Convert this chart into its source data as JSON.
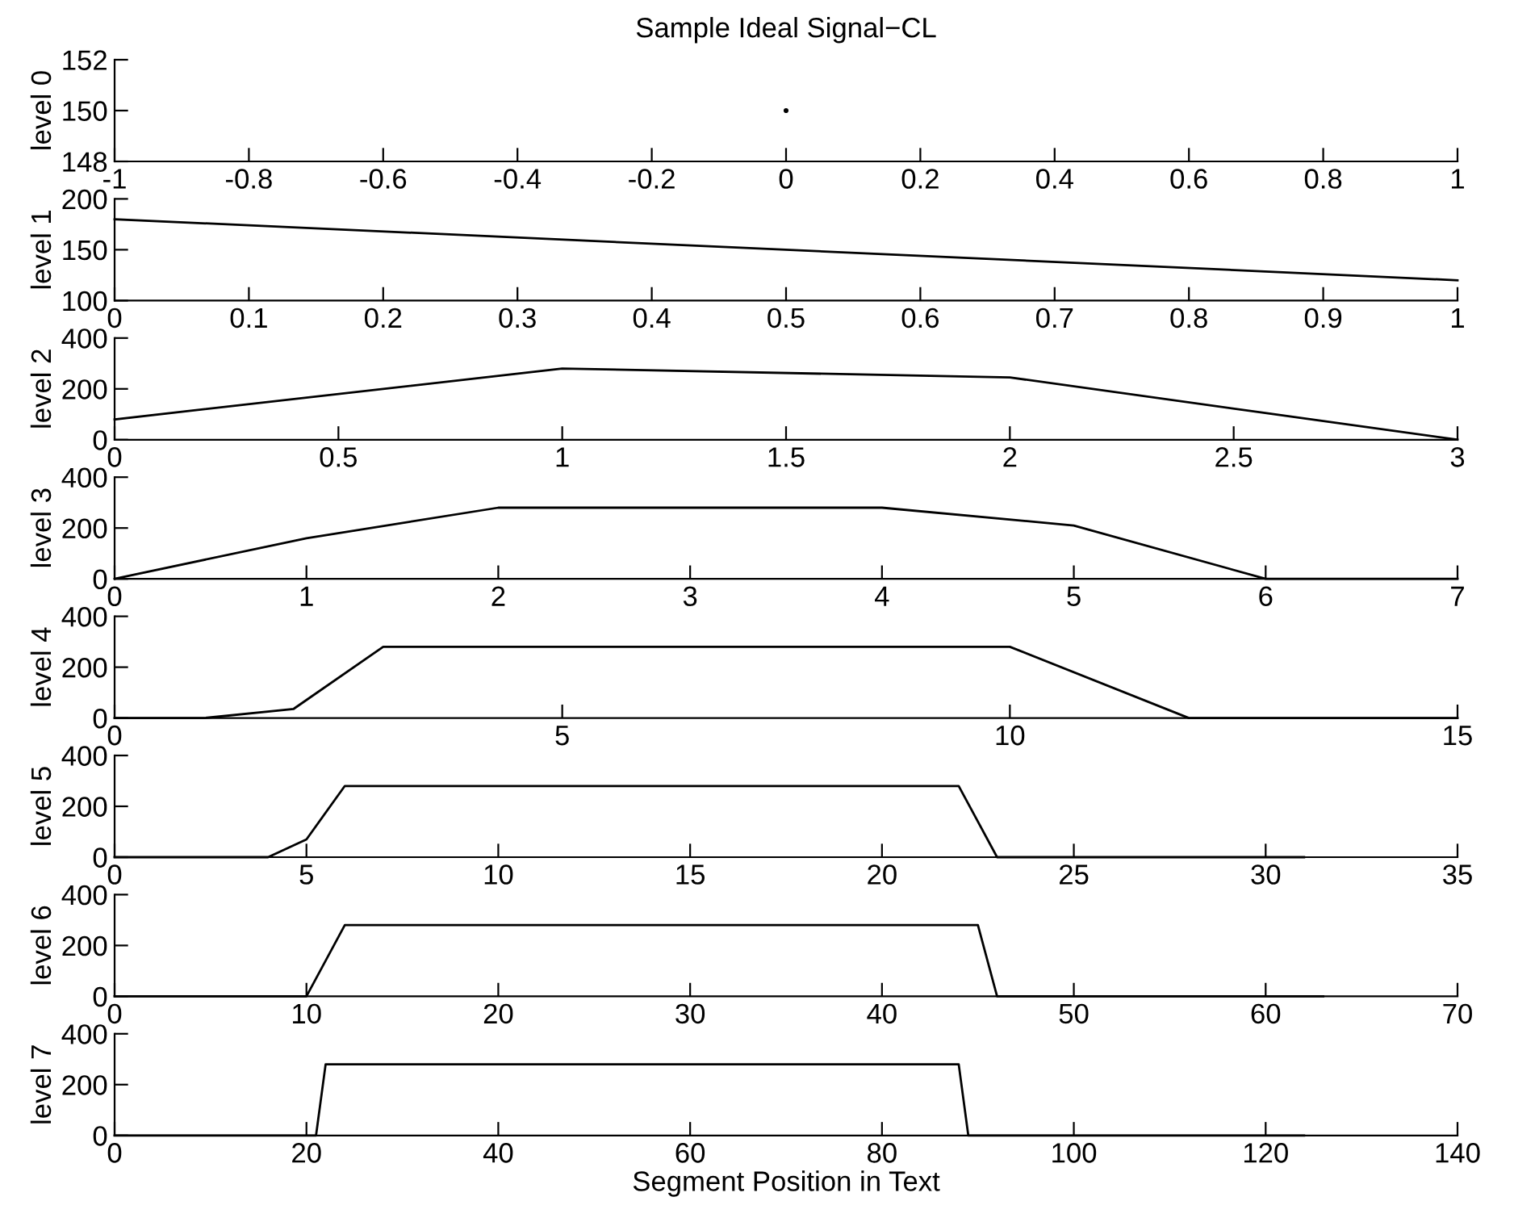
{
  "chart_data": [
    {
      "type": "line",
      "title": "Sample Ideal Signal−CL",
      "ylabel": "level 0",
      "marker": "circle",
      "x": [
        0
      ],
      "values": [
        150
      ],
      "color": "#000000",
      "xlim": [
        -1,
        1
      ],
      "xticks": [
        -1,
        -0.8,
        -0.6,
        -0.4,
        -0.2,
        0,
        0.2,
        0.4,
        0.6,
        0.8,
        1
      ],
      "ylim": [
        148,
        152
      ],
      "yticks": [
        148,
        150,
        152
      ]
    },
    {
      "type": "line",
      "ylabel": "level 1",
      "x": [
        0,
        1
      ],
      "values": [
        180,
        120
      ],
      "color": "#000000",
      "xlim": [
        0,
        1
      ],
      "xticks": [
        0,
        0.1,
        0.2,
        0.3,
        0.4,
        0.5,
        0.6,
        0.7,
        0.8,
        0.9,
        1
      ],
      "ylim": [
        100,
        200
      ],
      "yticks": [
        100,
        150,
        200
      ]
    },
    {
      "type": "line",
      "ylabel": "level 2",
      "x": [
        0,
        1,
        2,
        3
      ],
      "values": [
        80,
        280,
        245,
        0
      ],
      "color": "#000000",
      "xlim": [
        0,
        3
      ],
      "xticks": [
        0,
        0.5,
        1,
        1.5,
        2,
        2.5,
        3
      ],
      "ylim": [
        0,
        400
      ],
      "yticks": [
        0,
        200,
        400
      ]
    },
    {
      "type": "line",
      "ylabel": "level 3",
      "x": [
        0,
        1,
        2,
        3,
        4,
        5,
        6,
        7
      ],
      "values": [
        0,
        160,
        280,
        280,
        280,
        210,
        0,
        0
      ],
      "color": "#000000",
      "xlim": [
        0,
        7
      ],
      "xticks": [
        0,
        1,
        2,
        3,
        4,
        5,
        6,
        7
      ],
      "ylim": [
        0,
        400
      ],
      "yticks": [
        0,
        200,
        400
      ]
    },
    {
      "type": "line",
      "ylabel": "level 4",
      "x": [
        0,
        1,
        2,
        3,
        10,
        12,
        15
      ],
      "values": [
        0,
        0,
        36,
        280,
        280,
        0,
        0
      ],
      "color": "#000000",
      "xlim": [
        0,
        15
      ],
      "xticks": [
        0,
        5,
        10,
        15
      ],
      "ylim": [
        0,
        400
      ],
      "yticks": [
        0,
        200,
        400
      ]
    },
    {
      "type": "line",
      "ylabel": "level 5",
      "x": [
        0,
        4,
        5,
        6,
        22,
        23,
        31
      ],
      "values": [
        0,
        0,
        70,
        280,
        280,
        0,
        0
      ],
      "color": "#000000",
      "xlim": [
        0,
        35
      ],
      "xticks": [
        0,
        5,
        10,
        15,
        20,
        25,
        30,
        35
      ],
      "ylim": [
        0,
        400
      ],
      "yticks": [
        0,
        200,
        400
      ]
    },
    {
      "type": "line",
      "ylabel": "level 6",
      "x": [
        0,
        10,
        12,
        45,
        46,
        63
      ],
      "values": [
        0,
        0,
        280,
        280,
        0,
        0
      ],
      "color": "#000000",
      "xlim": [
        0,
        70
      ],
      "xticks": [
        0,
        10,
        20,
        30,
        40,
        50,
        60,
        70
      ],
      "ylim": [
        0,
        400
      ],
      "yticks": [
        0,
        200,
        400
      ]
    },
    {
      "type": "line",
      "ylabel": "level 7",
      "xlabel": "Segment Position in Text",
      "x": [
        0,
        21,
        22,
        88,
        89,
        124
      ],
      "values": [
        0,
        0,
        280,
        280,
        0,
        0
      ],
      "color": "#000000",
      "xlim": [
        0,
        140
      ],
      "xticks": [
        0,
        20,
        40,
        60,
        80,
        100,
        120,
        140
      ],
      "ylim": [
        0,
        400
      ],
      "yticks": [
        0,
        200,
        400
      ]
    }
  ]
}
